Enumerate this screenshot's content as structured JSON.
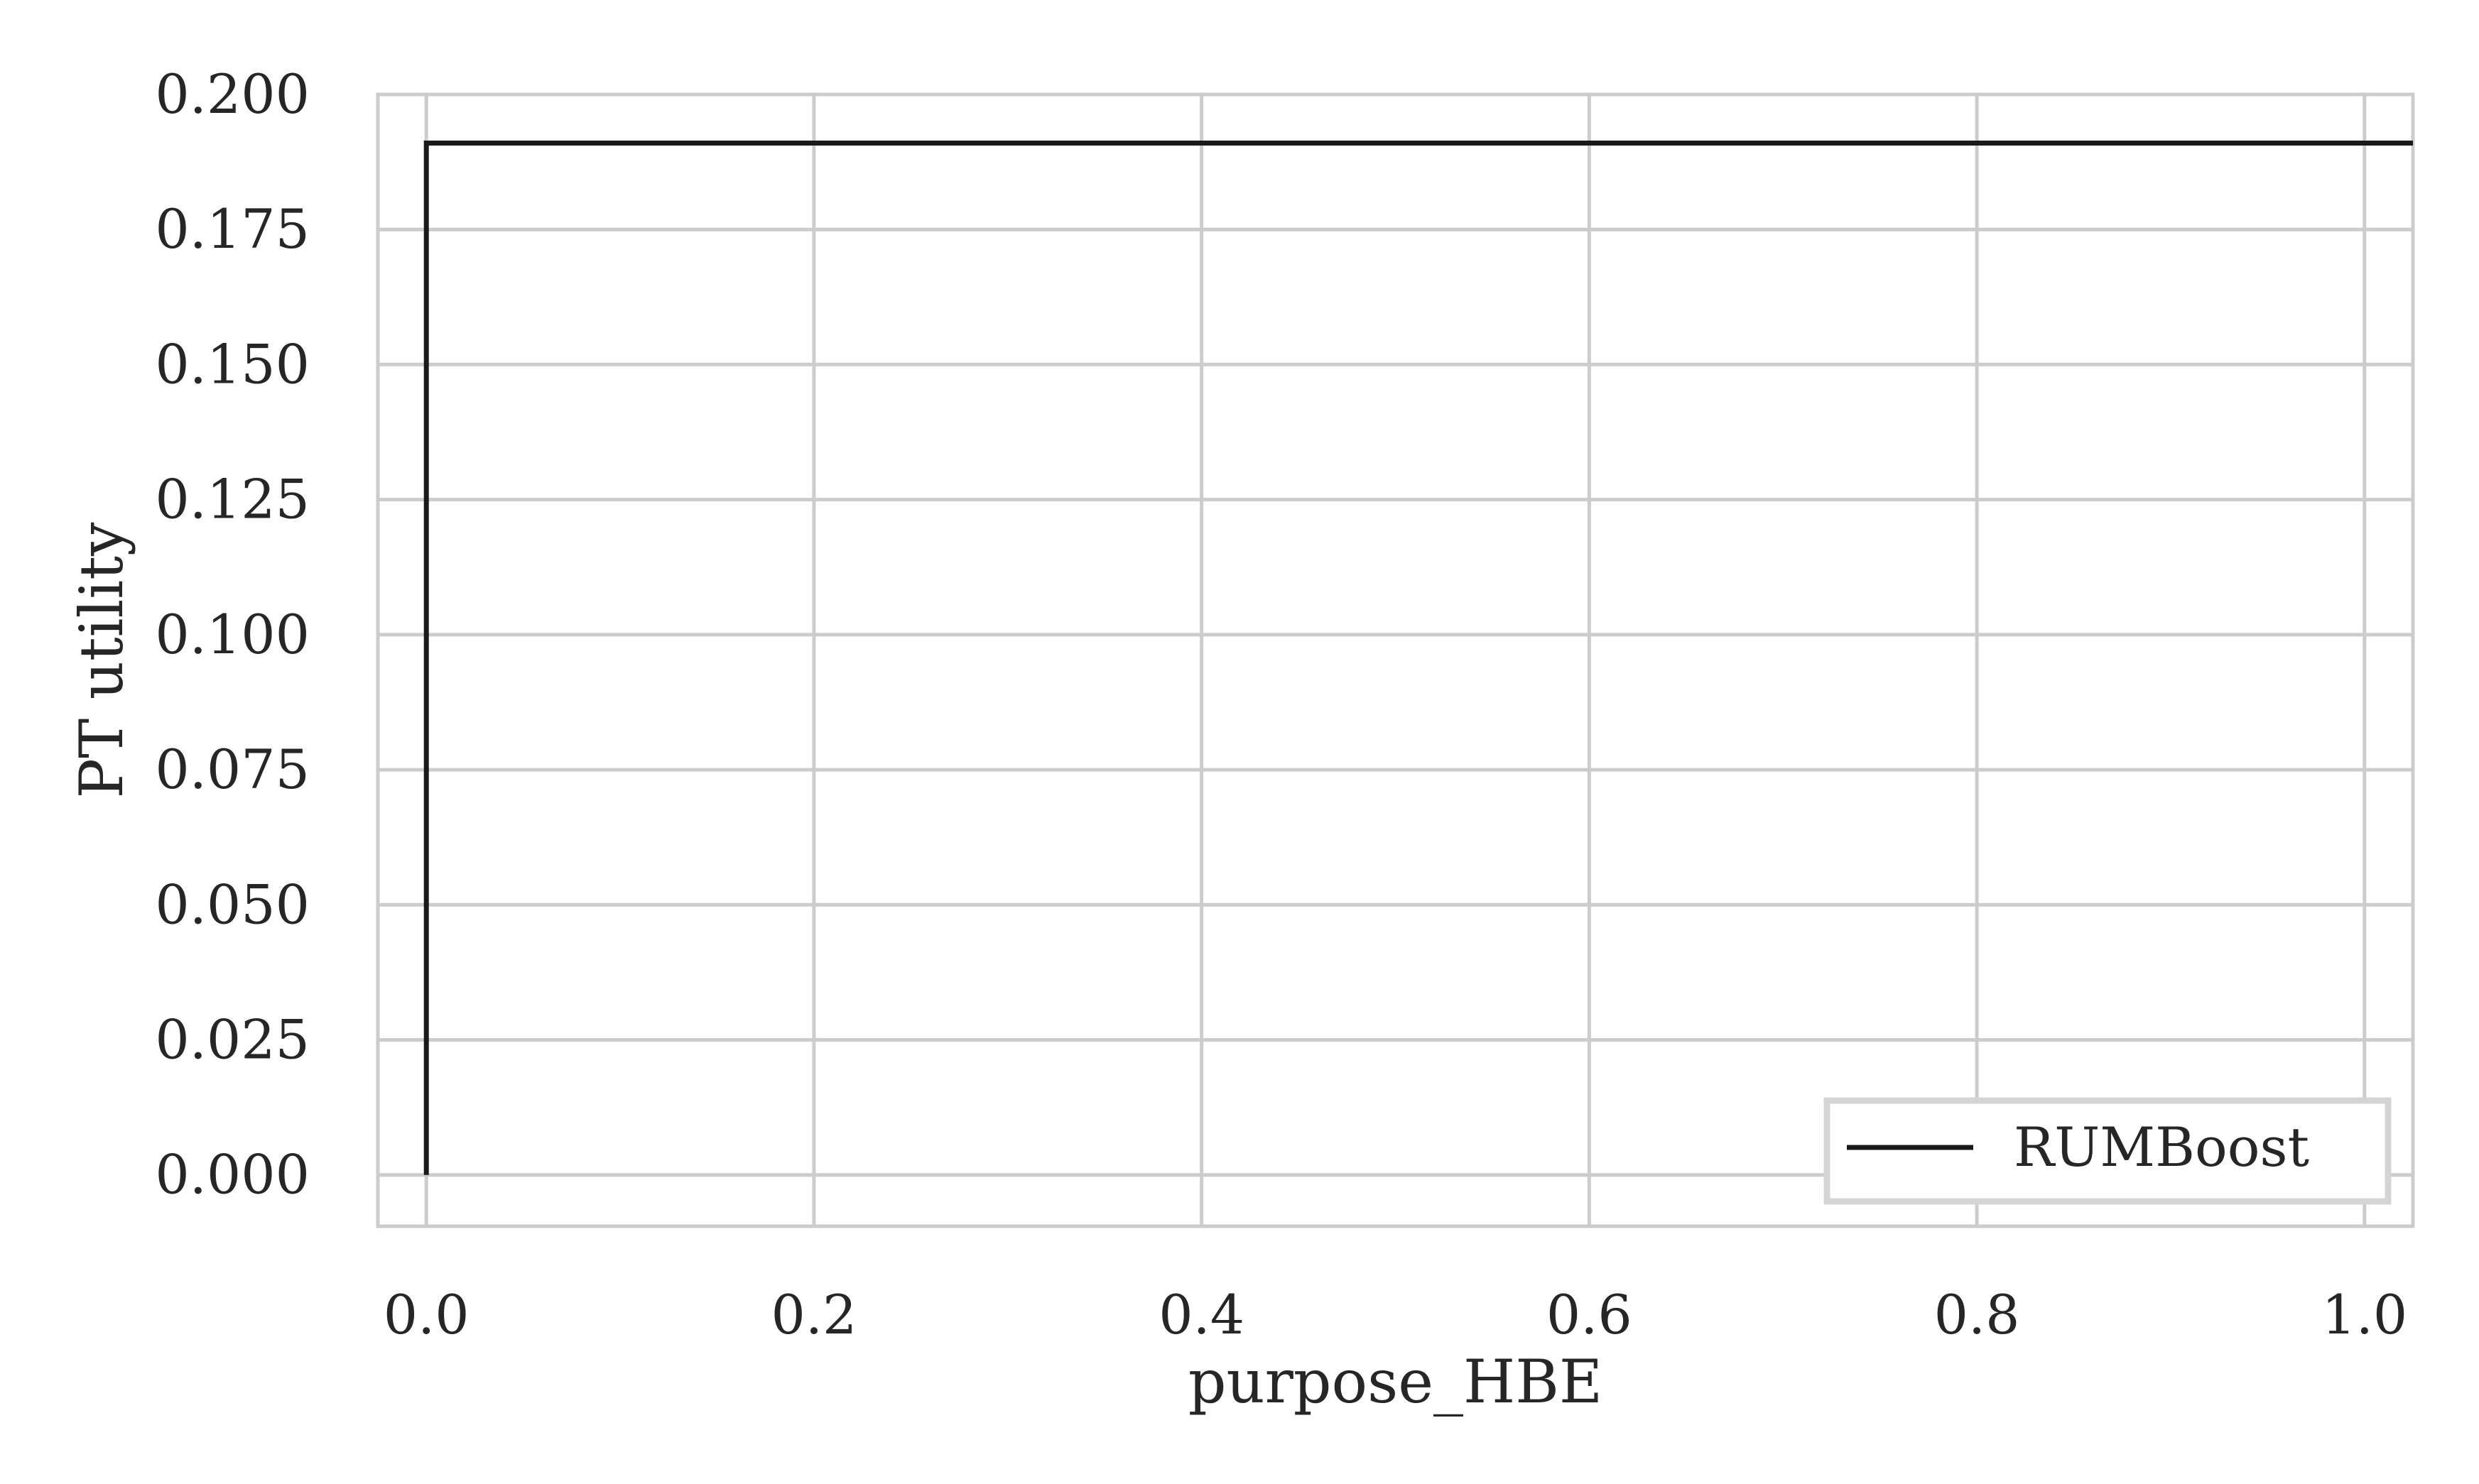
{
  "chart_data": {
    "type": "line",
    "title": "",
    "xlabel": "purpose_HBE",
    "ylabel": "PT utility",
    "xlim": [
      -0.025,
      1.025
    ],
    "ylim": [
      -0.0095,
      0.2
    ],
    "xticks": [
      0.0,
      0.2,
      0.4,
      0.6,
      0.8,
      1.0
    ],
    "xtick_labels": [
      "0.0",
      "0.2",
      "0.4",
      "0.6",
      "0.8",
      "1.0"
    ],
    "yticks": [
      0.0,
      0.025,
      0.05,
      0.075,
      0.1,
      0.125,
      0.15,
      0.175,
      0.2
    ],
    "ytick_labels": [
      "0.000",
      "0.025",
      "0.050",
      "0.075",
      "0.100",
      "0.125",
      "0.150",
      "0.175",
      "0.200"
    ],
    "grid": true,
    "legend_position": "lower-right",
    "series": [
      {
        "name": "RUMBoost",
        "color": "#1a1a1a",
        "x": [
          0.0,
          0.0,
          1.025
        ],
        "y": [
          0.0,
          0.191,
          0.191
        ]
      }
    ]
  }
}
